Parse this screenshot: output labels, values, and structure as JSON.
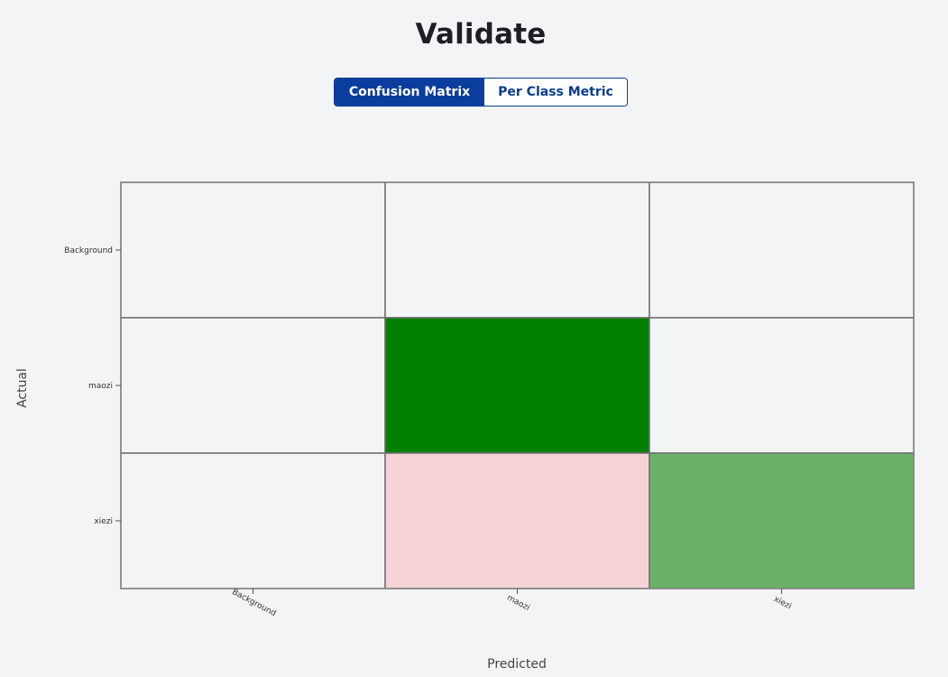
{
  "header": {
    "title": "Validate"
  },
  "tabs": [
    {
      "label": "Confusion Matrix",
      "active": true
    },
    {
      "label": "Per Class Metric",
      "active": false
    }
  ],
  "chart_data": {
    "type": "heatmap",
    "xlabel": "Predicted",
    "ylabel": "Actual",
    "x_categories": [
      "Background",
      "maozi",
      "xiezi"
    ],
    "y_categories": [
      "Background",
      "maozi",
      "xiezi"
    ],
    "cells": [
      [
        {
          "color": "#f3f4f6"
        },
        {
          "color": "#f3f4f6"
        },
        {
          "color": "#f3f4f6"
        }
      ],
      [
        {
          "color": "#f3f4f6"
        },
        {
          "color": "#008000"
        },
        {
          "color": "#f3f4f6"
        }
      ],
      [
        {
          "color": "#f3f4f6"
        },
        {
          "color": "#f5d3d6"
        },
        {
          "color": "#6ab26a"
        }
      ]
    ]
  }
}
